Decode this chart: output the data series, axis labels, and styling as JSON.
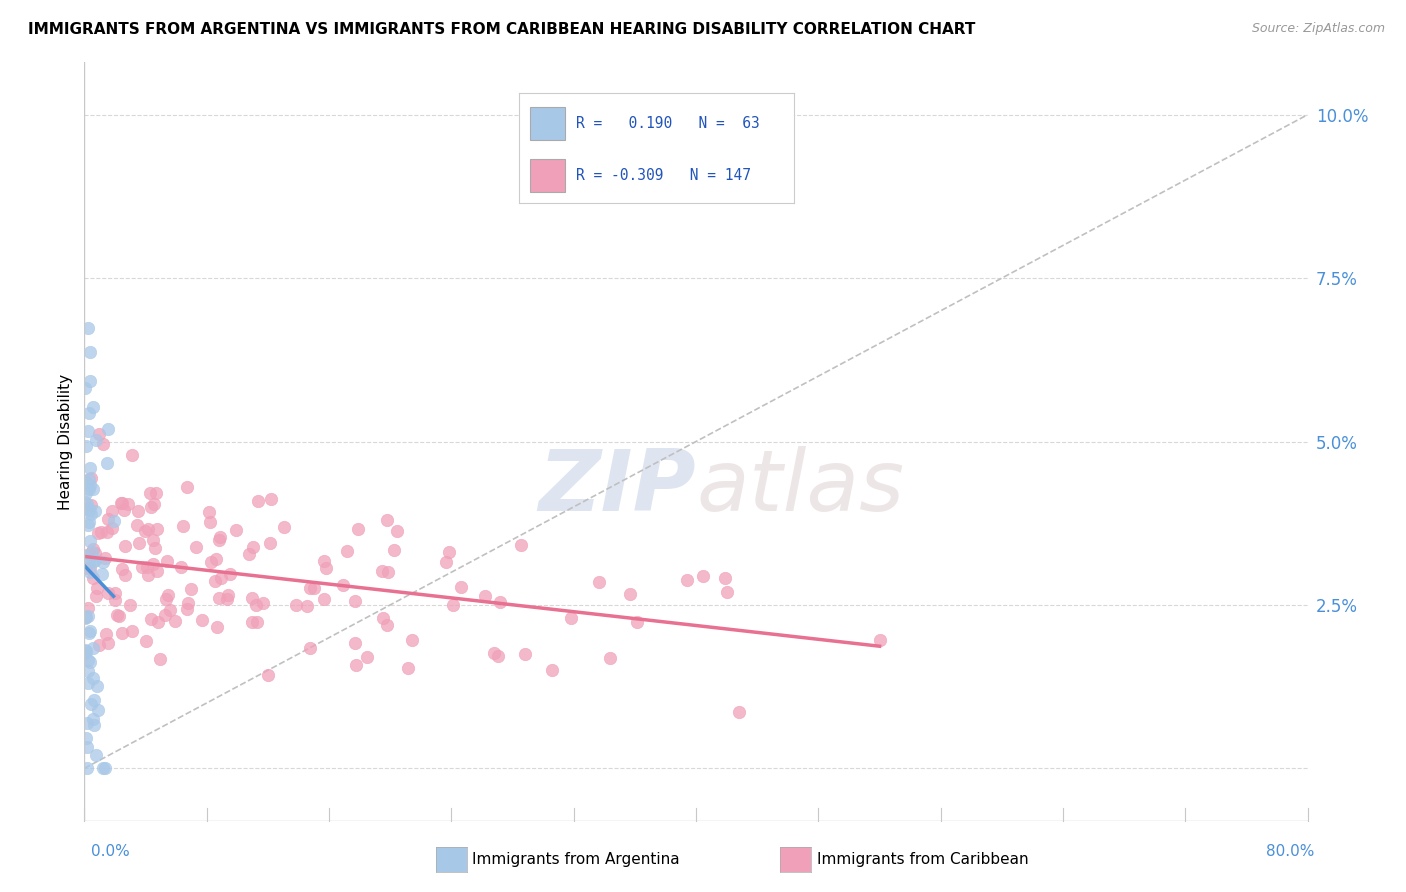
{
  "title": "IMMIGRANTS FROM ARGENTINA VS IMMIGRANTS FROM CARIBBEAN HEARING DISABILITY CORRELATION CHART",
  "source": "Source: ZipAtlas.com",
  "ylabel": "Hearing Disability",
  "yticks": [
    0.0,
    0.025,
    0.05,
    0.075,
    0.1
  ],
  "ytick_labels": [
    "",
    "2.5%",
    "5.0%",
    "7.5%",
    "10.0%"
  ],
  "xmin": 0.0,
  "xmax": 0.8,
  "ymin": -0.008,
  "ymax": 0.108,
  "argentina_R": 0.19,
  "argentina_N": 63,
  "caribbean_R": -0.309,
  "caribbean_N": 147,
  "argentina_color": "#a8c8e8",
  "caribbean_color": "#f0a0b8",
  "argentina_line_color": "#4a90d9",
  "caribbean_line_color": "#e87090",
  "ref_line_color": "#c0c0c0",
  "background_color": "#ffffff",
  "watermark_zip": "ZIP",
  "watermark_atlas": "atlas",
  "grid_color": "#d8d8d8",
  "axis_color": "#c8c8c8",
  "tick_color": "#4a90d9",
  "legend_R1": "R =   0.190   N =  63",
  "legend_R2": "R = -0.309   N = 147",
  "bottom_label1": "Immigrants from Argentina",
  "bottom_label2": "Immigrants from Caribbean"
}
